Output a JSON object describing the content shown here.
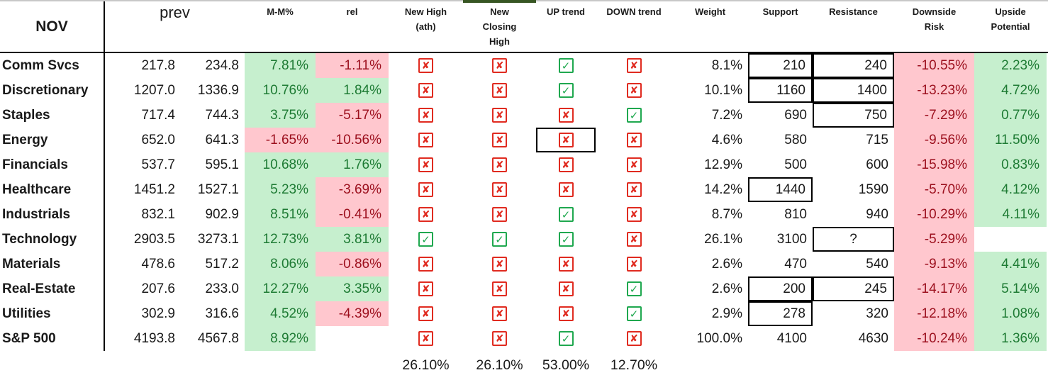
{
  "header": {
    "month": "NOV",
    "prev": "prev",
    "mm": "M-M%",
    "rel": "rel",
    "new_high": "New High\n(ath)",
    "new_closing": "New\nClosing\nHigh",
    "up_trend": "UP trend",
    "down_trend": "DOWN trend",
    "weight": "Weight",
    "support": "Support",
    "resistance": "Resistance",
    "downside": "Downside\nRisk",
    "upside": "Upside\nPotential"
  },
  "rows": [
    {
      "name": "Comm Svcs",
      "prev1": "217.8",
      "prev2": "234.8",
      "mm": "7.81%",
      "rel": "-1.11%",
      "nh": "x",
      "nch": "x",
      "up": "check",
      "down": "x",
      "weight": "8.1%",
      "support": "210",
      "resistance": "240",
      "downside": "-10.55%",
      "upside": "2.23%",
      "support_box": "boxed",
      "resistance_box": "boxed",
      "up_box": ""
    },
    {
      "name": "Discretionary",
      "prev1": "1207.0",
      "prev2": "1336.9",
      "mm": "10.76%",
      "rel": "1.84%",
      "nh": "x",
      "nch": "x",
      "up": "check",
      "down": "x",
      "weight": "10.1%",
      "support": "1160",
      "resistance": "1400",
      "downside": "-13.23%",
      "upside": "4.72%",
      "support_box": "boxed",
      "resistance_box": "boxed",
      "up_box": ""
    },
    {
      "name": "Staples",
      "prev1": "717.4",
      "prev2": "744.3",
      "mm": "3.75%",
      "rel": "-5.17%",
      "nh": "x",
      "nch": "x",
      "up": "x",
      "down": "check",
      "weight": "7.2%",
      "support": "690",
      "resistance": "750",
      "downside": "-7.29%",
      "upside": "0.77%",
      "support_box": "",
      "resistance_box": "boxed",
      "up_box": ""
    },
    {
      "name": "Energy",
      "prev1": "652.0",
      "prev2": "641.3",
      "mm": "-1.65%",
      "rel": "-10.56%",
      "nh": "x",
      "nch": "x",
      "up": "x",
      "down": "x",
      "weight": "4.6%",
      "support": "580",
      "resistance": "715",
      "downside": "-9.56%",
      "upside": "11.50%",
      "support_box": "",
      "resistance_box": "",
      "up_box": "boxed"
    },
    {
      "name": "Financials",
      "prev1": "537.7",
      "prev2": "595.1",
      "mm": "10.68%",
      "rel": "1.76%",
      "nh": "x",
      "nch": "x",
      "up": "x",
      "down": "x",
      "weight": "12.9%",
      "support": "500",
      "resistance": "600",
      "downside": "-15.98%",
      "upside": "0.83%",
      "support_box": "",
      "resistance_box": "",
      "up_box": ""
    },
    {
      "name": "Healthcare",
      "prev1": "1451.2",
      "prev2": "1527.1",
      "mm": "5.23%",
      "rel": "-3.69%",
      "nh": "x",
      "nch": "x",
      "up": "x",
      "down": "x",
      "weight": "14.2%",
      "support": "1440",
      "resistance": "1590",
      "downside": "-5.70%",
      "upside": "4.12%",
      "support_box": "boxed",
      "resistance_box": "",
      "up_box": ""
    },
    {
      "name": "Industrials",
      "prev1": "832.1",
      "prev2": "902.9",
      "mm": "8.51%",
      "rel": "-0.41%",
      "nh": "x",
      "nch": "x",
      "up": "check",
      "down": "x",
      "weight": "8.7%",
      "support": "810",
      "resistance": "940",
      "downside": "-10.29%",
      "upside": "4.11%",
      "support_box": "",
      "resistance_box": "",
      "up_box": ""
    },
    {
      "name": "Technology",
      "prev1": "2903.5",
      "prev2": "3273.1",
      "mm": "12.73%",
      "rel": "3.81%",
      "nh": "check",
      "nch": "check",
      "up": "check",
      "down": "x",
      "weight": "26.1%",
      "support": "3100",
      "resistance": "?",
      "downside": "-5.29%",
      "upside": "",
      "support_box": "",
      "resistance_box": "boxed",
      "up_box": ""
    },
    {
      "name": "Materials",
      "prev1": "478.6",
      "prev2": "517.2",
      "mm": "8.06%",
      "rel": "-0.86%",
      "nh": "x",
      "nch": "x",
      "up": "x",
      "down": "x",
      "weight": "2.6%",
      "support": "470",
      "resistance": "540",
      "downside": "-9.13%",
      "upside": "4.41%",
      "support_box": "",
      "resistance_box": "",
      "up_box": ""
    },
    {
      "name": "Real-Estate",
      "prev1": "207.6",
      "prev2": "233.0",
      "mm": "12.27%",
      "rel": "3.35%",
      "nh": "x",
      "nch": "x",
      "up": "x",
      "down": "check",
      "weight": "2.6%",
      "support": "200",
      "resistance": "245",
      "downside": "-14.17%",
      "upside": "5.14%",
      "support_box": "boxed",
      "resistance_box": "boxed",
      "up_box": ""
    },
    {
      "name": "Utilities",
      "prev1": "302.9",
      "prev2": "316.6",
      "mm": "4.52%",
      "rel": "-4.39%",
      "nh": "x",
      "nch": "x",
      "up": "x",
      "down": "check",
      "weight": "2.9%",
      "support": "278",
      "resistance": "320",
      "downside": "-12.18%",
      "upside": "1.08%",
      "support_box": "boxed",
      "resistance_box": "",
      "up_box": ""
    },
    {
      "name": "S&P 500",
      "prev1": "4193.8",
      "prev2": "4567.8",
      "mm": "8.92%",
      "rel": "",
      "nh": "x",
      "nch": "x",
      "up": "check",
      "down": "x",
      "weight": "100.0%",
      "support": "4100",
      "resistance": "4630",
      "downside": "-10.24%",
      "upside": "1.36%",
      "support_box": "",
      "resistance_box": "",
      "up_box": ""
    }
  ],
  "summary": {
    "new_high": "26.10%",
    "new_closing": "26.10%",
    "up_trend": "53.00%",
    "down_trend": "12.70%"
  },
  "colors": {
    "positive_fill": "#c6efce",
    "negative_fill": "#ffc7ce",
    "positive_text": "#1e7b34",
    "negative_text": "#9c0f1d",
    "check_green": "#1fa84f",
    "cross_red": "#e02b20",
    "selection_strip_green": "#375623"
  }
}
